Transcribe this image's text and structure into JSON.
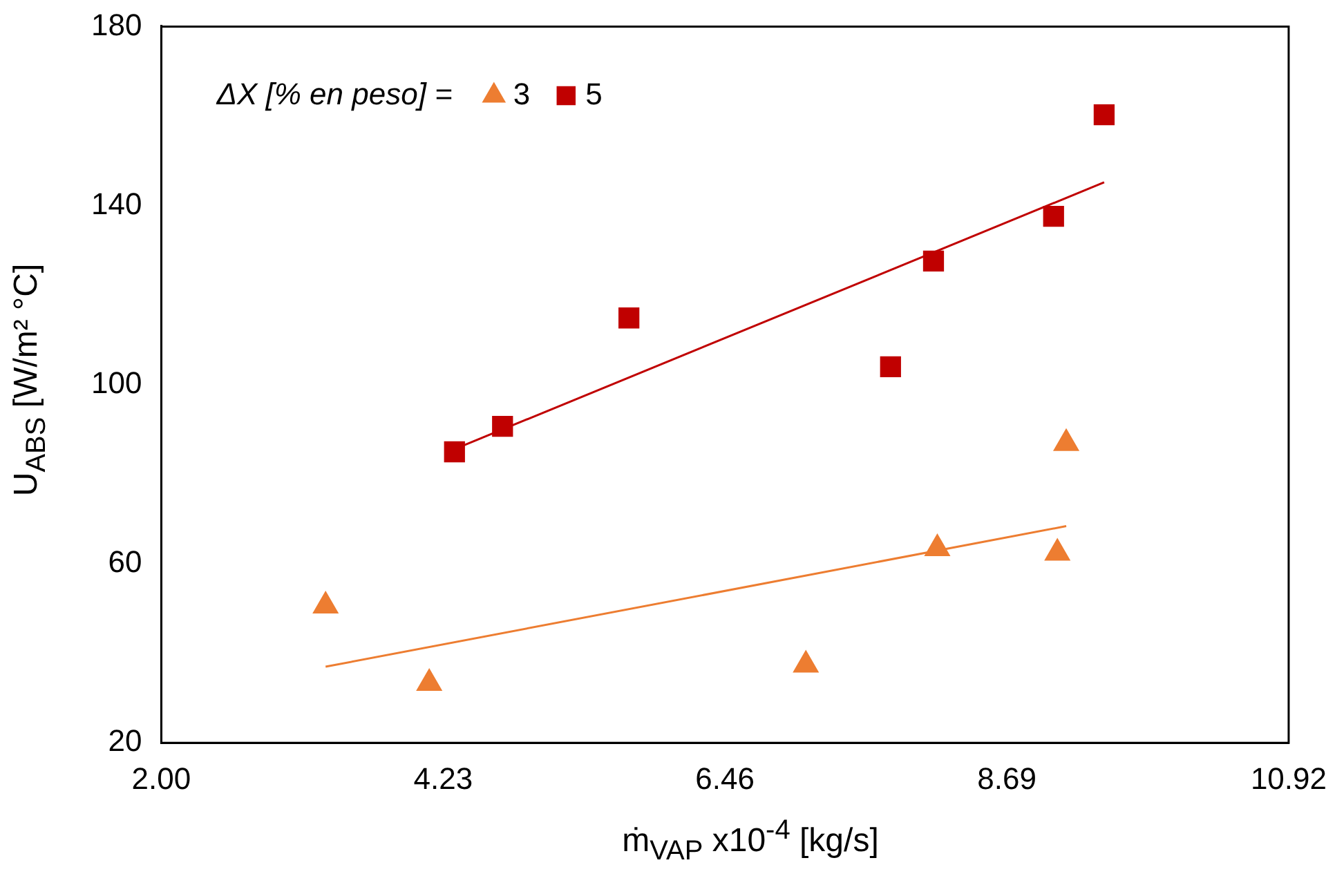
{
  "chart_data": {
    "type": "scatter",
    "xlabel": "ṁ$_{VAP}$ x10$^{-4}$ [kg/s]",
    "ylabel": "U$_{ABS}$ [W/m² °C]",
    "legend_title": "ΔX [% en peso] =",
    "legend": "top left",
    "grid": false,
    "xlim": [
      2,
      10.92
    ],
    "xticks": [
      {
        "value": 2,
        "label": "2.00"
      },
      {
        "value": 4.23,
        "label": "4.23"
      },
      {
        "value": 6.46,
        "label": "6.46"
      },
      {
        "value": 8.69,
        "label": "8.69"
      },
      {
        "value": 10.92,
        "label": "10.92"
      }
    ],
    "ylim": [
      20,
      180
    ],
    "yticks": [
      20,
      60,
      100,
      140,
      180
    ],
    "series": [
      {
        "name": "3",
        "color": "#ed7d31",
        "marker": "triangle",
        "x": [
          3.3,
          4.12,
          7.1,
          8.14,
          9.09,
          9.16
        ],
        "values": [
          50.6,
          33.3,
          37.4,
          63.4,
          62.4,
          86.9
        ]
      },
      {
        "name": "5",
        "color": "#c00000",
        "marker": "square",
        "x": [
          4.32,
          4.7,
          5.7,
          7.77,
          8.11,
          9.06,
          9.46
        ],
        "values": [
          85.0,
          90.7,
          114.9,
          104.0,
          127.6,
          137.6,
          160.3
        ]
      },
      {
        "type": "line",
        "color": "#ed7d31",
        "marker": "none",
        "x": [
          3.3,
          9.16
        ],
        "values": [
          37.0,
          68.4
        ]
      },
      {
        "type": "line",
        "color": "#c00000",
        "marker": "none",
        "x": [
          4.32,
          9.46
        ],
        "values": [
          85.6,
          145.2
        ]
      }
    ]
  }
}
